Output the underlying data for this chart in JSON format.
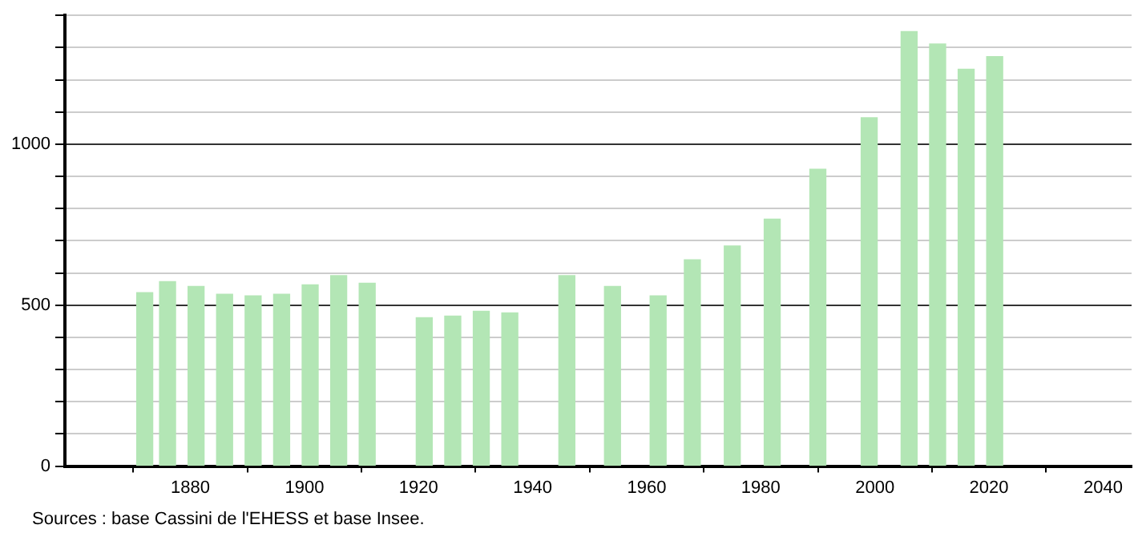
{
  "chart_data": {
    "type": "bar",
    "x": [
      1872,
      1876,
      1881,
      1886,
      1891,
      1896,
      1901,
      1906,
      1911,
      1921,
      1926,
      1931,
      1936,
      1946,
      1954,
      1962,
      1968,
      1975,
      1982,
      1990,
      1999,
      2006,
      2011,
      2016,
      2021
    ],
    "values": [
      539,
      573,
      558,
      534,
      529,
      534,
      563,
      592,
      568,
      461,
      466,
      481,
      476,
      592,
      558,
      529,
      641,
      684,
      767,
      922,
      1082,
      1350,
      1311,
      1233,
      1272
    ],
    "color": "#b3e6b5",
    "xlim": [
      1858,
      2045
    ],
    "xticks": [
      1880,
      1900,
      1920,
      1940,
      1960,
      1980,
      2000,
      2020,
      2040
    ],
    "ylim": [
      0,
      1400
    ],
    "yticks": [
      0,
      {
        "value": 100,
        "label": null
      },
      {
        "value": 200,
        "label": null
      },
      {
        "value": 300,
        "label": null
      },
      {
        "value": 400,
        "label": null
      },
      500,
      {
        "value": 600,
        "label": null
      },
      {
        "value": 700,
        "label": null
      },
      {
        "value": 800,
        "label": null
      },
      {
        "value": 900,
        "label": null
      },
      1000,
      {
        "value": 1100,
        "label": null
      },
      {
        "value": 1200,
        "label": null
      },
      {
        "value": 1300,
        "label": null
      },
      {
        "value": 1400,
        "label": null
      }
    ],
    "grid": "y",
    "annotations": [
      "Sources : base Cassini de l'EHESS et base Insee."
    ]
  }
}
